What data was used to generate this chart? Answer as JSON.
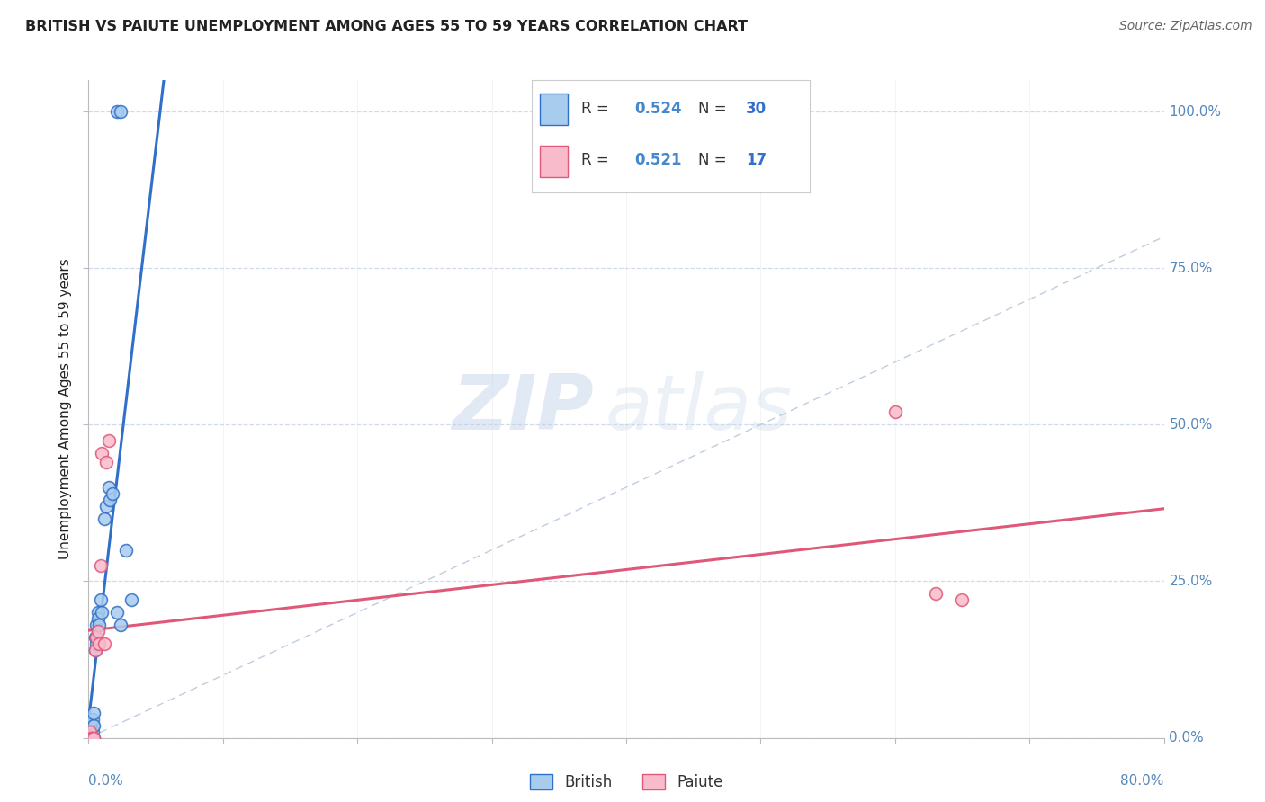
{
  "title": "BRITISH VS PAIUTE UNEMPLOYMENT AMONG AGES 55 TO 59 YEARS CORRELATION CHART",
  "source": "Source: ZipAtlas.com",
  "ylabel": "Unemployment Among Ages 55 to 59 years",
  "xlim": [
    0,
    0.8
  ],
  "ylim": [
    0,
    1.05
  ],
  "british_r": 0.524,
  "british_n": 30,
  "paiute_r": 0.521,
  "paiute_n": 17,
  "british_color": "#A8CCEE",
  "paiute_color": "#F8BBCC",
  "british_line_color": "#3070C8",
  "paiute_line_color": "#E05878",
  "ref_line_color": "#B8C8DC",
  "legend_r_color": "#4488CC",
  "legend_n_color": "#3370CC",
  "background_color": "#FFFFFF",
  "grid_color": "#D0DAEC",
  "title_color": "#222222",
  "source_color": "#666666",
  "axis_tick_color": "#5588BB",
  "british_x": [
    0.001,
    0.001,
    0.002,
    0.002,
    0.003,
    0.003,
    0.003,
    0.004,
    0.004,
    0.004,
    0.005,
    0.005,
    0.006,
    0.006,
    0.007,
    0.007,
    0.008,
    0.009,
    0.01,
    0.012,
    0.013,
    0.015,
    0.016,
    0.018,
    0.021,
    0.024,
    0.028,
    0.032,
    0.021,
    0.024
  ],
  "british_y": [
    0.0,
    0.01,
    0.0,
    0.02,
    0.0,
    0.01,
    0.03,
    0.0,
    0.02,
    0.04,
    0.14,
    0.16,
    0.18,
    0.15,
    0.2,
    0.19,
    0.18,
    0.22,
    0.2,
    0.35,
    0.37,
    0.4,
    0.38,
    0.39,
    1.0,
    1.0,
    0.3,
    0.22,
    0.2,
    0.18
  ],
  "paiute_x": [
    0.001,
    0.001,
    0.002,
    0.003,
    0.004,
    0.005,
    0.006,
    0.007,
    0.008,
    0.009,
    0.01,
    0.012,
    0.013,
    0.015,
    0.6,
    0.63,
    0.65
  ],
  "paiute_y": [
    0.0,
    0.01,
    0.0,
    0.0,
    0.0,
    0.14,
    0.16,
    0.17,
    0.15,
    0.275,
    0.455,
    0.15,
    0.44,
    0.475,
    0.52,
    0.23,
    0.22
  ],
  "watermark_zip": "ZIP",
  "watermark_atlas": "atlas",
  "y_ticks": [
    0.0,
    0.25,
    0.5,
    0.75,
    1.0
  ],
  "y_tick_labels": [
    "0.0%",
    "25.0%",
    "50.0%",
    "75.0%",
    "100.0%"
  ]
}
